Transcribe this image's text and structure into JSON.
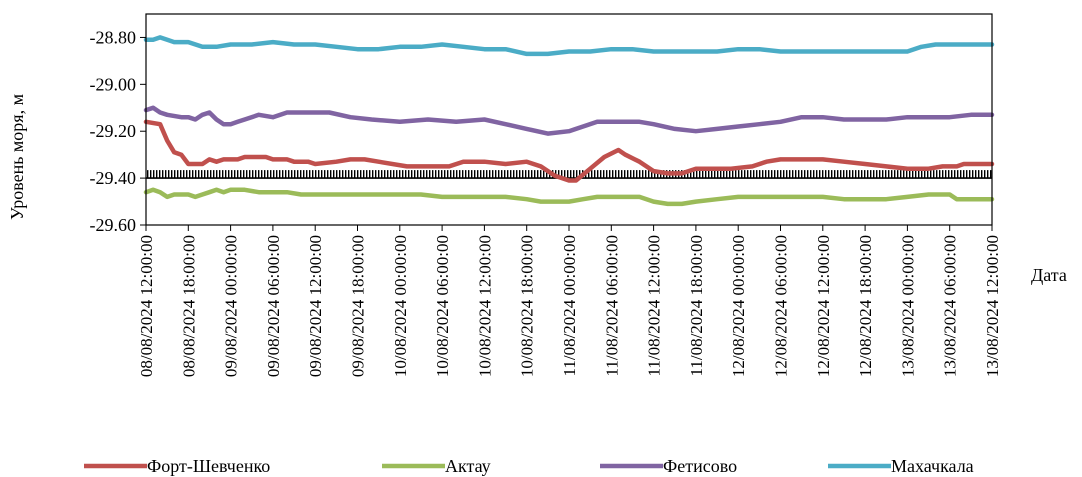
{
  "chart_data": {
    "type": "line",
    "xlabel": "Дата",
    "ylabel": "Уровень моря, м",
    "ylim": [
      -29.6,
      -28.7
    ],
    "yticks": [
      "-28.80",
      "-29.00",
      "-29.20",
      "-29.40",
      "-29.60"
    ],
    "ytick_values": [
      -28.8,
      -29.0,
      -29.2,
      -29.4,
      -29.6
    ],
    "x_range": [
      "08/08/2024 12:00:00",
      "13/08/2024 12:00:00"
    ],
    "xticks": [
      "08/08/2024 12:00:00",
      "08/08/2024 18:00:00",
      "09/08/2024 00:00:00",
      "09/08/2024 06:00:00",
      "09/08/2024 12:00:00",
      "09/08/2024 18:00:00",
      "10/08/2024 00:00:00",
      "10/08/2024 06:00:00",
      "10/08/2024 12:00:00",
      "10/08/2024 18:00:00",
      "11/08/2024 00:00:00",
      "11/08/2024 06:00:00",
      "11/08/2024 12:00:00",
      "11/08/2024 18:00:00",
      "12/08/2024 00:00:00",
      "12/08/2024 06:00:00",
      "12/08/2024 12:00:00",
      "12/08/2024 18:00:00",
      "13/08/2024 00:00:00",
      "13/08/2024 06:00:00",
      "13/08/2024 12:00:00"
    ],
    "reference_line": {
      "value": -29.4,
      "style": "hatched"
    },
    "grid": false,
    "legend_position": "bottom",
    "series": [
      {
        "name": "Форт-Шевченко",
        "color": "#c0504d",
        "points": [
          [
            "08/08/2024 12:00:00",
            -29.16
          ],
          [
            "08/08/2024 14:00:00",
            -29.17
          ],
          [
            "08/08/2024 15:00:00",
            -29.24
          ],
          [
            "08/08/2024 16:00:00",
            -29.29
          ],
          [
            "08/08/2024 17:00:00",
            -29.3
          ],
          [
            "08/08/2024 18:00:00",
            -29.34
          ],
          [
            "08/08/2024 20:00:00",
            -29.34
          ],
          [
            "08/08/2024 21:00:00",
            -29.32
          ],
          [
            "08/08/2024 22:00:00",
            -29.33
          ],
          [
            "08/08/2024 23:00:00",
            -29.32
          ],
          [
            "09/08/2024 01:00:00",
            -29.32
          ],
          [
            "09/08/2024 02:00:00",
            -29.31
          ],
          [
            "09/08/2024 05:00:00",
            -29.31
          ],
          [
            "09/08/2024 06:00:00",
            -29.32
          ],
          [
            "09/08/2024 08:00:00",
            -29.32
          ],
          [
            "09/08/2024 09:00:00",
            -29.33
          ],
          [
            "09/08/2024 11:00:00",
            -29.33
          ],
          [
            "09/08/2024 12:00:00",
            -29.34
          ],
          [
            "09/08/2024 15:00:00",
            -29.33
          ],
          [
            "09/08/2024 17:00:00",
            -29.32
          ],
          [
            "09/08/2024 19:00:00",
            -29.32
          ],
          [
            "09/08/2024 21:00:00",
            -29.33
          ],
          [
            "10/08/2024 01:00:00",
            -29.35
          ],
          [
            "10/08/2024 04:00:00",
            -29.35
          ],
          [
            "10/08/2024 07:00:00",
            -29.35
          ],
          [
            "10/08/2024 09:00:00",
            -29.33
          ],
          [
            "10/08/2024 12:00:00",
            -29.33
          ],
          [
            "10/08/2024 15:00:00",
            -29.34
          ],
          [
            "10/08/2024 18:00:00",
            -29.33
          ],
          [
            "10/08/2024 20:00:00",
            -29.35
          ],
          [
            "10/08/2024 22:00:00",
            -29.39
          ],
          [
            "11/08/2024 00:00:00",
            -29.41
          ],
          [
            "11/08/2024 01:00:00",
            -29.41
          ],
          [
            "11/08/2024 03:00:00",
            -29.36
          ],
          [
            "11/08/2024 05:00:00",
            -29.31
          ],
          [
            "11/08/2024 07:00:00",
            -29.28
          ],
          [
            "11/08/2024 08:00:00",
            -29.3
          ],
          [
            "11/08/2024 10:00:00",
            -29.33
          ],
          [
            "11/08/2024 12:00:00",
            -29.37
          ],
          [
            "11/08/2024 14:00:00",
            -29.38
          ],
          [
            "11/08/2024 16:00:00",
            -29.38
          ],
          [
            "11/08/2024 18:00:00",
            -29.36
          ],
          [
            "11/08/2024 21:00:00",
            -29.36
          ],
          [
            "11/08/2024 23:00:00",
            -29.36
          ],
          [
            "12/08/2024 02:00:00",
            -29.35
          ],
          [
            "12/08/2024 04:00:00",
            -29.33
          ],
          [
            "12/08/2024 06:00:00",
            -29.32
          ],
          [
            "12/08/2024 09:00:00",
            -29.32
          ],
          [
            "12/08/2024 12:00:00",
            -29.32
          ],
          [
            "12/08/2024 15:00:00",
            -29.33
          ],
          [
            "12/08/2024 18:00:00",
            -29.34
          ],
          [
            "12/08/2024 21:00:00",
            -29.35
          ],
          [
            "13/08/2024 00:00:00",
            -29.36
          ],
          [
            "13/08/2024 03:00:00",
            -29.36
          ],
          [
            "13/08/2024 05:00:00",
            -29.35
          ],
          [
            "13/08/2024 07:00:00",
            -29.35
          ],
          [
            "13/08/2024 08:00:00",
            -29.34
          ],
          [
            "13/08/2024 10:00:00",
            -29.34
          ],
          [
            "13/08/2024 12:00:00",
            -29.34
          ]
        ]
      },
      {
        "name": "Актау",
        "color": "#9bbb59",
        "points": [
          [
            "08/08/2024 12:00:00",
            -29.46
          ],
          [
            "08/08/2024 13:00:00",
            -29.45
          ],
          [
            "08/08/2024 14:00:00",
            -29.46
          ],
          [
            "08/08/2024 15:00:00",
            -29.48
          ],
          [
            "08/08/2024 16:00:00",
            -29.47
          ],
          [
            "08/08/2024 17:00:00",
            -29.47
          ],
          [
            "08/08/2024 18:00:00",
            -29.47
          ],
          [
            "08/08/2024 19:00:00",
            -29.48
          ],
          [
            "08/08/2024 20:00:00",
            -29.47
          ],
          [
            "08/08/2024 21:00:00",
            -29.46
          ],
          [
            "08/08/2024 22:00:00",
            -29.45
          ],
          [
            "08/08/2024 23:00:00",
            -29.46
          ],
          [
            "09/08/2024 00:00:00",
            -29.45
          ],
          [
            "09/08/2024 02:00:00",
            -29.45
          ],
          [
            "09/08/2024 04:00:00",
            -29.46
          ],
          [
            "09/08/2024 06:00:00",
            -29.46
          ],
          [
            "09/08/2024 08:00:00",
            -29.46
          ],
          [
            "09/08/2024 10:00:00",
            -29.47
          ],
          [
            "09/08/2024 12:00:00",
            -29.47
          ],
          [
            "09/08/2024 15:00:00",
            -29.47
          ],
          [
            "09/08/2024 18:00:00",
            -29.47
          ],
          [
            "09/08/2024 21:00:00",
            -29.47
          ],
          [
            "10/08/2024 00:00:00",
            -29.47
          ],
          [
            "10/08/2024 03:00:00",
            -29.47
          ],
          [
            "10/08/2024 06:00:00",
            -29.48
          ],
          [
            "10/08/2024 09:00:00",
            -29.48
          ],
          [
            "10/08/2024 12:00:00",
            -29.48
          ],
          [
            "10/08/2024 15:00:00",
            -29.48
          ],
          [
            "10/08/2024 18:00:00",
            -29.49
          ],
          [
            "10/08/2024 20:00:00",
            -29.5
          ],
          [
            "10/08/2024 22:00:00",
            -29.5
          ],
          [
            "11/08/2024 00:00:00",
            -29.5
          ],
          [
            "11/08/2024 02:00:00",
            -29.49
          ],
          [
            "11/08/2024 04:00:00",
            -29.48
          ],
          [
            "11/08/2024 06:00:00",
            -29.48
          ],
          [
            "11/08/2024 08:00:00",
            -29.48
          ],
          [
            "11/08/2024 10:00:00",
            -29.48
          ],
          [
            "11/08/2024 12:00:00",
            -29.5
          ],
          [
            "11/08/2024 14:00:00",
            -29.51
          ],
          [
            "11/08/2024 16:00:00",
            -29.51
          ],
          [
            "11/08/2024 18:00:00",
            -29.5
          ],
          [
            "11/08/2024 21:00:00",
            -29.49
          ],
          [
            "12/08/2024 00:00:00",
            -29.48
          ],
          [
            "12/08/2024 03:00:00",
            -29.48
          ],
          [
            "12/08/2024 06:00:00",
            -29.48
          ],
          [
            "12/08/2024 09:00:00",
            -29.48
          ],
          [
            "12/08/2024 12:00:00",
            -29.48
          ],
          [
            "12/08/2024 15:00:00",
            -29.49
          ],
          [
            "12/08/2024 18:00:00",
            -29.49
          ],
          [
            "12/08/2024 21:00:00",
            -29.49
          ],
          [
            "13/08/2024 00:00:00",
            -29.48
          ],
          [
            "13/08/2024 03:00:00",
            -29.47
          ],
          [
            "13/08/2024 05:00:00",
            -29.47
          ],
          [
            "13/08/2024 06:00:00",
            -29.47
          ],
          [
            "13/08/2024 07:00:00",
            -29.49
          ],
          [
            "13/08/2024 09:00:00",
            -29.49
          ],
          [
            "13/08/2024 12:00:00",
            -29.49
          ]
        ]
      },
      {
        "name": "Фетисово",
        "color": "#8064a2",
        "points": [
          [
            "08/08/2024 12:00:00",
            -29.11
          ],
          [
            "08/08/2024 13:00:00",
            -29.1
          ],
          [
            "08/08/2024 14:00:00",
            -29.12
          ],
          [
            "08/08/2024 15:00:00",
            -29.13
          ],
          [
            "08/08/2024 17:00:00",
            -29.14
          ],
          [
            "08/08/2024 18:00:00",
            -29.14
          ],
          [
            "08/08/2024 19:00:00",
            -29.15
          ],
          [
            "08/08/2024 20:00:00",
            -29.13
          ],
          [
            "08/08/2024 21:00:00",
            -29.12
          ],
          [
            "08/08/2024 22:00:00",
            -29.15
          ],
          [
            "08/08/2024 23:00:00",
            -29.17
          ],
          [
            "09/08/2024 00:00:00",
            -29.17
          ],
          [
            "09/08/2024 01:00:00",
            -29.16
          ],
          [
            "09/08/2024 02:00:00",
            -29.15
          ],
          [
            "09/08/2024 04:00:00",
            -29.13
          ],
          [
            "09/08/2024 06:00:00",
            -29.14
          ],
          [
            "09/08/2024 08:00:00",
            -29.12
          ],
          [
            "09/08/2024 11:00:00",
            -29.12
          ],
          [
            "09/08/2024 14:00:00",
            -29.12
          ],
          [
            "09/08/2024 17:00:00",
            -29.14
          ],
          [
            "09/08/2024 20:00:00",
            -29.15
          ],
          [
            "10/08/2024 00:00:00",
            -29.16
          ],
          [
            "10/08/2024 04:00:00",
            -29.15
          ],
          [
            "10/08/2024 08:00:00",
            -29.16
          ],
          [
            "10/08/2024 12:00:00",
            -29.15
          ],
          [
            "10/08/2024 15:00:00",
            -29.17
          ],
          [
            "10/08/2024 18:00:00",
            -29.19
          ],
          [
            "10/08/2024 21:00:00",
            -29.21
          ],
          [
            "11/08/2024 00:00:00",
            -29.2
          ],
          [
            "11/08/2024 02:00:00",
            -29.18
          ],
          [
            "11/08/2024 04:00:00",
            -29.16
          ],
          [
            "11/08/2024 06:00:00",
            -29.16
          ],
          [
            "11/08/2024 08:00:00",
            -29.16
          ],
          [
            "11/08/2024 10:00:00",
            -29.16
          ],
          [
            "11/08/2024 12:00:00",
            -29.17
          ],
          [
            "11/08/2024 15:00:00",
            -29.19
          ],
          [
            "11/08/2024 18:00:00",
            -29.2
          ],
          [
            "11/08/2024 21:00:00",
            -29.19
          ],
          [
            "12/08/2024 00:00:00",
            -29.18
          ],
          [
            "12/08/2024 03:00:00",
            -29.17
          ],
          [
            "12/08/2024 06:00:00",
            -29.16
          ],
          [
            "12/08/2024 09:00:00",
            -29.14
          ],
          [
            "12/08/2024 12:00:00",
            -29.14
          ],
          [
            "12/08/2024 15:00:00",
            -29.15
          ],
          [
            "12/08/2024 18:00:00",
            -29.15
          ],
          [
            "12/08/2024 21:00:00",
            -29.15
          ],
          [
            "13/08/2024 00:00:00",
            -29.14
          ],
          [
            "13/08/2024 03:00:00",
            -29.14
          ],
          [
            "13/08/2024 06:00:00",
            -29.14
          ],
          [
            "13/08/2024 09:00:00",
            -29.13
          ],
          [
            "13/08/2024 12:00:00",
            -29.13
          ]
        ]
      },
      {
        "name": "Махачкала",
        "color": "#4bacc6",
        "points": [
          [
            "08/08/2024 12:00:00",
            -28.81
          ],
          [
            "08/08/2024 13:00:00",
            -28.81
          ],
          [
            "08/08/2024 14:00:00",
            -28.8
          ],
          [
            "08/08/2024 15:00:00",
            -28.81
          ],
          [
            "08/08/2024 16:00:00",
            -28.82
          ],
          [
            "08/08/2024 18:00:00",
            -28.82
          ],
          [
            "08/08/2024 20:00:00",
            -28.84
          ],
          [
            "08/08/2024 22:00:00",
            -28.84
          ],
          [
            "09/08/2024 00:00:00",
            -28.83
          ],
          [
            "09/08/2024 03:00:00",
            -28.83
          ],
          [
            "09/08/2024 06:00:00",
            -28.82
          ],
          [
            "09/08/2024 09:00:00",
            -28.83
          ],
          [
            "09/08/2024 12:00:00",
            -28.83
          ],
          [
            "09/08/2024 15:00:00",
            -28.84
          ],
          [
            "09/08/2024 18:00:00",
            -28.85
          ],
          [
            "09/08/2024 21:00:00",
            -28.85
          ],
          [
            "10/08/2024 00:00:00",
            -28.84
          ],
          [
            "10/08/2024 03:00:00",
            -28.84
          ],
          [
            "10/08/2024 06:00:00",
            -28.83
          ],
          [
            "10/08/2024 09:00:00",
            -28.84
          ],
          [
            "10/08/2024 12:00:00",
            -28.85
          ],
          [
            "10/08/2024 15:00:00",
            -28.85
          ],
          [
            "10/08/2024 18:00:00",
            -28.87
          ],
          [
            "10/08/2024 21:00:00",
            -28.87
          ],
          [
            "11/08/2024 00:00:00",
            -28.86
          ],
          [
            "11/08/2024 03:00:00",
            -28.86
          ],
          [
            "11/08/2024 06:00:00",
            -28.85
          ],
          [
            "11/08/2024 09:00:00",
            -28.85
          ],
          [
            "11/08/2024 12:00:00",
            -28.86
          ],
          [
            "11/08/2024 15:00:00",
            -28.86
          ],
          [
            "11/08/2024 18:00:00",
            -28.86
          ],
          [
            "11/08/2024 21:00:00",
            -28.86
          ],
          [
            "12/08/2024 00:00:00",
            -28.85
          ],
          [
            "12/08/2024 03:00:00",
            -28.85
          ],
          [
            "12/08/2024 06:00:00",
            -28.86
          ],
          [
            "12/08/2024 09:00:00",
            -28.86
          ],
          [
            "12/08/2024 12:00:00",
            -28.86
          ],
          [
            "12/08/2024 15:00:00",
            -28.86
          ],
          [
            "12/08/2024 18:00:00",
            -28.86
          ],
          [
            "12/08/2024 21:00:00",
            -28.86
          ],
          [
            "13/08/2024 00:00:00",
            -28.86
          ],
          [
            "13/08/2024 02:00:00",
            -28.84
          ],
          [
            "13/08/2024 04:00:00",
            -28.83
          ],
          [
            "13/08/2024 06:00:00",
            -28.83
          ],
          [
            "13/08/2024 08:00:00",
            -28.83
          ],
          [
            "13/08/2024 10:00:00",
            -28.83
          ],
          [
            "13/08/2024 12:00:00",
            -28.83
          ]
        ]
      }
    ]
  }
}
